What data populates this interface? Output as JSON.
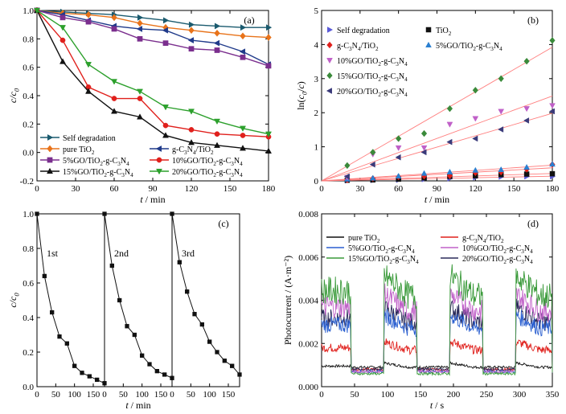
{
  "chart_data": [
    {
      "type": "line",
      "panel_label": "(a)",
      "xlabel": "t / min",
      "ylabel": "c/c0",
      "xlim": [
        0,
        180
      ],
      "ylim": [
        -0.2,
        1.0
      ],
      "xticks": [
        0,
        30,
        60,
        90,
        120,
        150,
        180
      ],
      "yticks": [
        -0.2,
        0.0,
        0.2,
        0.4,
        0.6,
        0.8,
        1.0
      ],
      "x": [
        0,
        20,
        40,
        60,
        80,
        100,
        120,
        140,
        160,
        180
      ],
      "legend_position": "bottom-left",
      "series": [
        {
          "name": "Self degradation",
          "marker": "right-triangle",
          "color": "#1a5a6e",
          "values": [
            1.0,
            0.99,
            0.98,
            0.97,
            0.95,
            0.93,
            0.9,
            0.89,
            0.88,
            0.88
          ]
        },
        {
          "name": "pure TiO2",
          "marker": "diamond",
          "color": "#e8731a",
          "values": [
            1.0,
            0.98,
            0.97,
            0.95,
            0.91,
            0.88,
            0.86,
            0.84,
            0.82,
            0.81
          ]
        },
        {
          "name": "g-C3N4/TiO2",
          "marker": "left-triangle",
          "color": "#1f3a8a",
          "values": [
            1.0,
            0.97,
            0.93,
            0.89,
            0.87,
            0.86,
            0.79,
            0.77,
            0.71,
            0.62
          ]
        },
        {
          "name": "5%GO/TiO2-g-C3N4",
          "marker": "square",
          "color": "#7b2f8e",
          "values": [
            1.0,
            0.95,
            0.92,
            0.87,
            0.8,
            0.77,
            0.73,
            0.72,
            0.67,
            0.61
          ]
        },
        {
          "name": "10%GO/TiO2-g-C3N4",
          "marker": "circle",
          "color": "#e0201c",
          "values": [
            1.0,
            0.79,
            0.46,
            0.38,
            0.38,
            0.19,
            0.16,
            0.13,
            0.12,
            0.11
          ]
        },
        {
          "name": "15%GO/TiO2-g-C3N4",
          "marker": "triangle",
          "color": "#111111",
          "values": [
            1.0,
            0.64,
            0.43,
            0.29,
            0.25,
            0.12,
            0.07,
            0.05,
            0.03,
            0.01
          ]
        },
        {
          "name": "20%GO/TiO2-g-C3N4",
          "marker": "down-triangle",
          "color": "#2ca02c",
          "values": [
            1.0,
            0.88,
            0.62,
            0.5,
            0.43,
            0.32,
            0.29,
            0.22,
            0.17,
            0.13
          ]
        }
      ]
    },
    {
      "type": "scatter",
      "panel_label": "(b)",
      "xlabel": "t / min",
      "ylabel": "ln(c0/c)",
      "xlim": [
        0,
        180
      ],
      "ylim": [
        0,
        5
      ],
      "xticks": [
        0,
        30,
        60,
        90,
        120,
        150,
        180
      ],
      "yticks": [
        0,
        1,
        2,
        3,
        4,
        5
      ],
      "x": [
        20,
        40,
        60,
        80,
        100,
        120,
        140,
        160,
        180
      ],
      "fit_lines": true,
      "fit_color": "#ff7f7f",
      "legend_position": "top-left",
      "series": [
        {
          "name": "Self degradation",
          "marker": "right-triangle",
          "color": "#5a5ad8",
          "values": [
            0.01,
            0.02,
            0.03,
            0.05,
            0.07,
            0.1,
            0.12,
            0.13,
            0.13
          ]
        },
        {
          "name": "TiO2",
          "marker": "square",
          "color": "#111111",
          "values": [
            0.02,
            0.03,
            0.05,
            0.09,
            0.13,
            0.15,
            0.18,
            0.2,
            0.21
          ]
        },
        {
          "name": "g-C3N4/TiO2",
          "marker": "diamond",
          "color": "#e0201c",
          "values": [
            0.03,
            0.07,
            0.12,
            0.14,
            0.15,
            0.24,
            0.26,
            0.34,
            0.48
          ]
        },
        {
          "name": "5%GO/TiO2-g-C3N4",
          "marker": "triangle",
          "color": "#2a7fd0",
          "values": [
            0.05,
            0.08,
            0.14,
            0.22,
            0.26,
            0.31,
            0.33,
            0.4,
            0.49
          ]
        },
        {
          "name": "10%GO/TiO2-g-C3N4",
          "marker": "down-triangle",
          "color": "#c060c8",
          "values": [
            0.1,
            0.78,
            0.97,
            0.97,
            1.66,
            1.83,
            2.04,
            2.12,
            2.21
          ]
        },
        {
          "name": "15%GO/TiO2-g-C3N4",
          "marker": "diamond",
          "color": "#3a8a3a",
          "values": [
            0.45,
            0.84,
            1.24,
            1.39,
            2.12,
            2.66,
            3.0,
            3.51,
            4.12
          ]
        },
        {
          "name": "20%GO/TiO2-g-C3N4",
          "marker": "left-triangle",
          "color": "#3a3a7a",
          "values": [
            0.13,
            0.48,
            0.69,
            0.84,
            1.14,
            1.24,
            1.51,
            1.77,
            2.04
          ]
        }
      ]
    },
    {
      "type": "line",
      "panel_label": "(c)",
      "xlabel": "t / min",
      "ylabel": "c/c0",
      "ylim": [
        0.0,
        1.0
      ],
      "yticks": [
        0.0,
        0.2,
        0.4,
        0.6,
        0.8,
        1.0
      ],
      "xticks": [
        0,
        50,
        100,
        150
      ],
      "sub_labels": [
        "1st",
        "2nd",
        "3rd"
      ],
      "x": [
        0,
        20,
        40,
        60,
        80,
        100,
        120,
        140,
        160,
        180
      ],
      "series": [
        {
          "name": "1st",
          "color": "#111111",
          "marker": "square",
          "values": [
            1.0,
            0.64,
            0.43,
            0.29,
            0.25,
            0.12,
            0.08,
            0.06,
            0.04,
            0.02
          ]
        },
        {
          "name": "2nd",
          "color": "#111111",
          "marker": "square",
          "values": [
            1.0,
            0.7,
            0.5,
            0.35,
            0.3,
            0.18,
            0.13,
            0.09,
            0.07,
            0.05
          ]
        },
        {
          "name": "3rd",
          "color": "#111111",
          "marker": "square",
          "values": [
            1.0,
            0.72,
            0.55,
            0.42,
            0.36,
            0.26,
            0.2,
            0.15,
            0.12,
            0.07
          ]
        }
      ]
    },
    {
      "type": "line",
      "panel_label": "(d)",
      "xlabel": "t / s",
      "ylabel": "Photocurrent / (A·m⁻²)",
      "xlim": [
        0,
        350
      ],
      "ylim": [
        0.0,
        0.008
      ],
      "xticks": [
        0,
        50,
        100,
        150,
        200,
        250,
        300,
        350
      ],
      "yticks": [
        0.0,
        0.002,
        0.004,
        0.006,
        0.008
      ],
      "light_on_intervals": [
        [
          0,
          45
        ],
        [
          95,
          145
        ],
        [
          195,
          245
        ],
        [
          295,
          350
        ]
      ],
      "dark_level": 0.0007,
      "legend_position": "top",
      "series": [
        {
          "name": "pure TiO2",
          "color": "#111111",
          "on_level": 0.0009,
          "dark_level": 0.0009
        },
        {
          "name": "g-C3N4/TiO2",
          "color": "#e0201c",
          "on_level": 0.0017,
          "dark_level": 0.0008
        },
        {
          "name": "5%GO/TiO2-g-C3N4",
          "color": "#2a5fd0",
          "on_level": 0.0027,
          "dark_level": 0.0007
        },
        {
          "name": "10%GO/TiO2-g-C3N4",
          "color": "#c060c8",
          "on_level": 0.0035,
          "dark_level": 0.0007
        },
        {
          "name": "15%GO/TiO2-g-C3N4",
          "color": "#3a9a3a",
          "on_level": 0.0042,
          "dark_level": 0.0006
        },
        {
          "name": "20%GO/TiO2-g-C3N4",
          "color": "#2a2a5a",
          "on_level": 0.003,
          "dark_level": 0.0008
        }
      ]
    }
  ]
}
